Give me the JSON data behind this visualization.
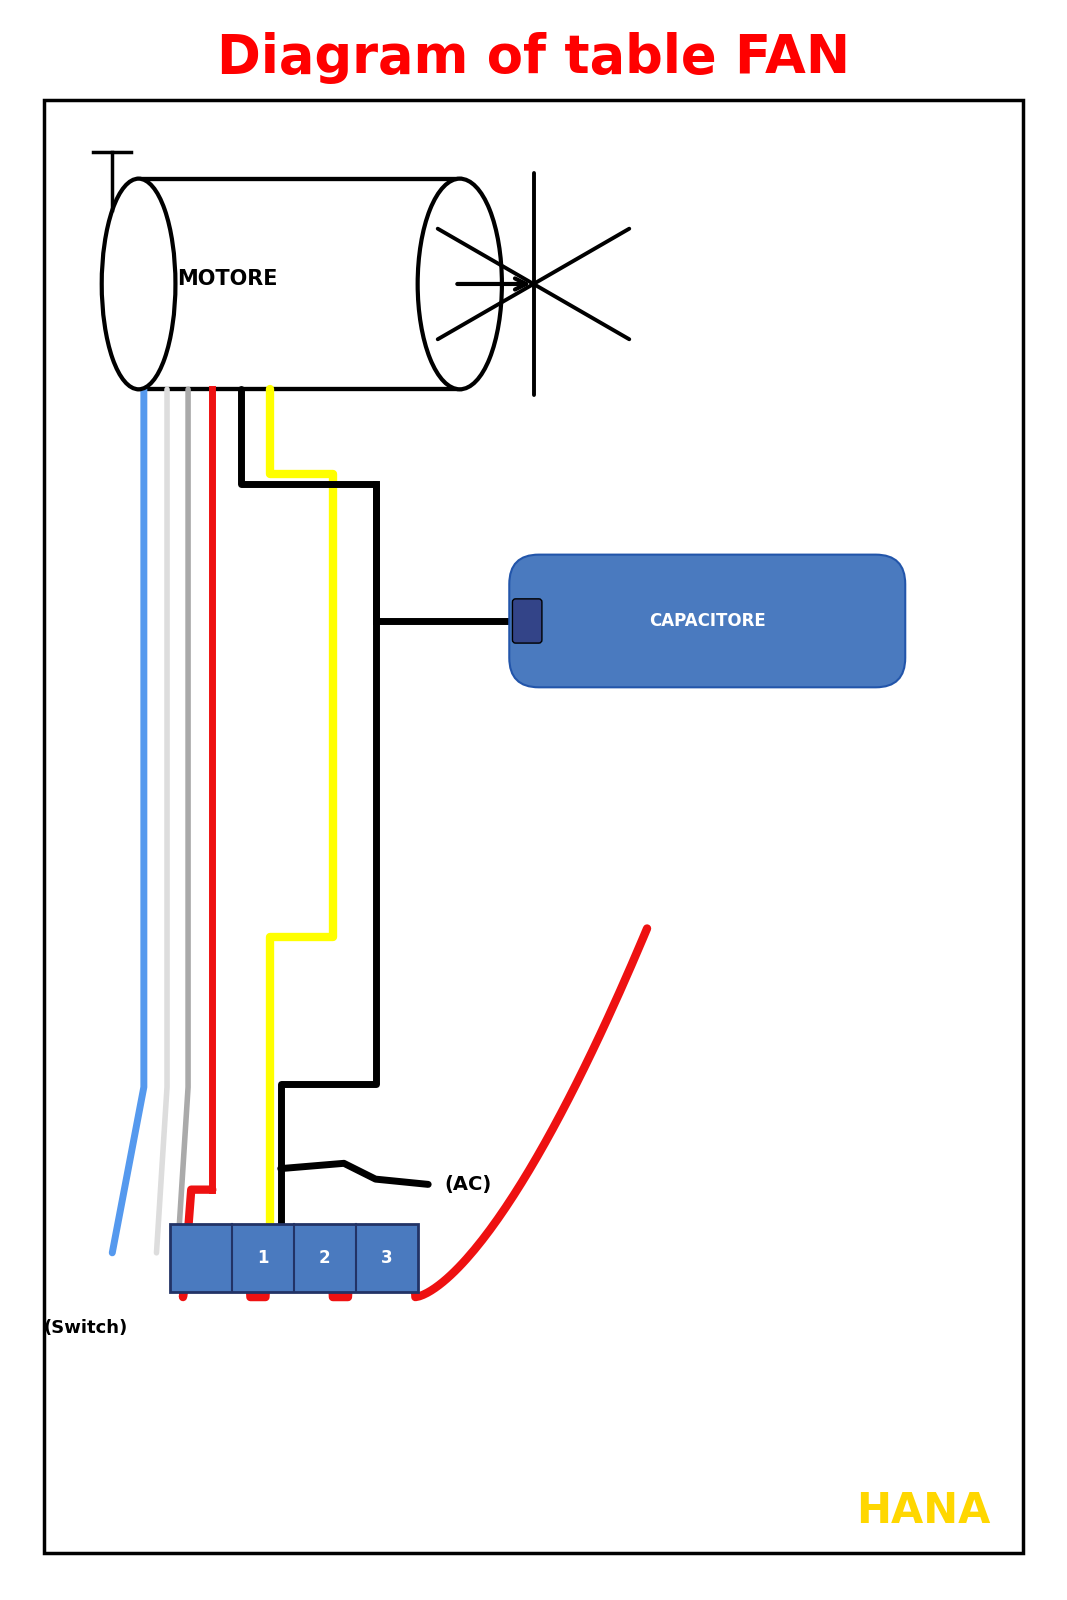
{
  "title": "Diagram of table FAN",
  "title_color": "#ff0000",
  "title_fontsize": 38,
  "hana_text": "HANA",
  "hana_color": "#ffd700",
  "hana_fontsize": 30,
  "bg_color": "#ffffff",
  "motore_label": "MOTORE",
  "capacitore_label": "CAPACITORE",
  "ac_label": "(AC)",
  "switch_label": "(Switch)",
  "switch_numbers": [
    "1",
    "2",
    "3"
  ],
  "wire_lw": 5,
  "black_wire_lw": 5,
  "capacitor_color": "#4a7abf",
  "switch_color": "#4a7abf",
  "blue_color": "#5599ee",
  "red_color": "#ee1111",
  "yellow_color": "#ffff00",
  "gray1_color": "#aaaaaa",
  "gray2_color": "#dddddd"
}
